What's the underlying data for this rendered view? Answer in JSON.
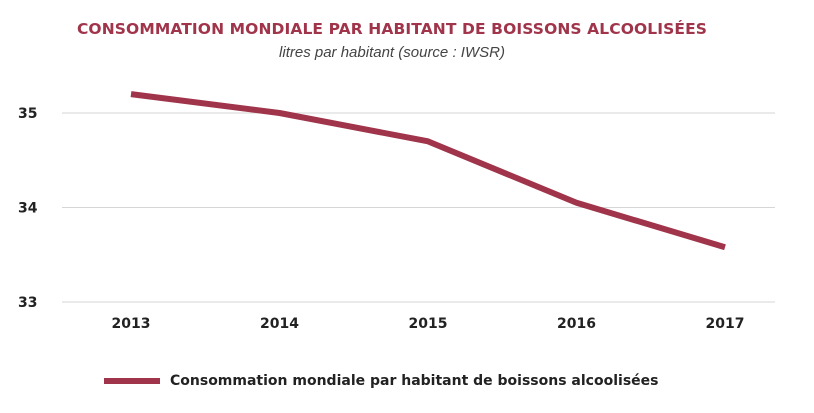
{
  "chart_data": {
    "type": "line",
    "title": "CONSOMMATION MONDIALE PAR HABITANT DE BOISSONS ALCOOLISÉES",
    "subtitle": "litres par habitant (source : IWSR)",
    "categories": [
      "2013",
      "2014",
      "2015",
      "2016",
      "2017"
    ],
    "series": [
      {
        "name": "Consommation mondiale par habitant de boissons alcoolisées",
        "values": [
          35.2,
          35.0,
          34.7,
          34.05,
          33.58
        ],
        "color": "#a0344a"
      }
    ],
    "yticks": [
      "33",
      "34",
      "35"
    ],
    "ylim": [
      33,
      35.4
    ],
    "grid": true,
    "legend": "bottom-left",
    "title_color": "#a0344a"
  }
}
